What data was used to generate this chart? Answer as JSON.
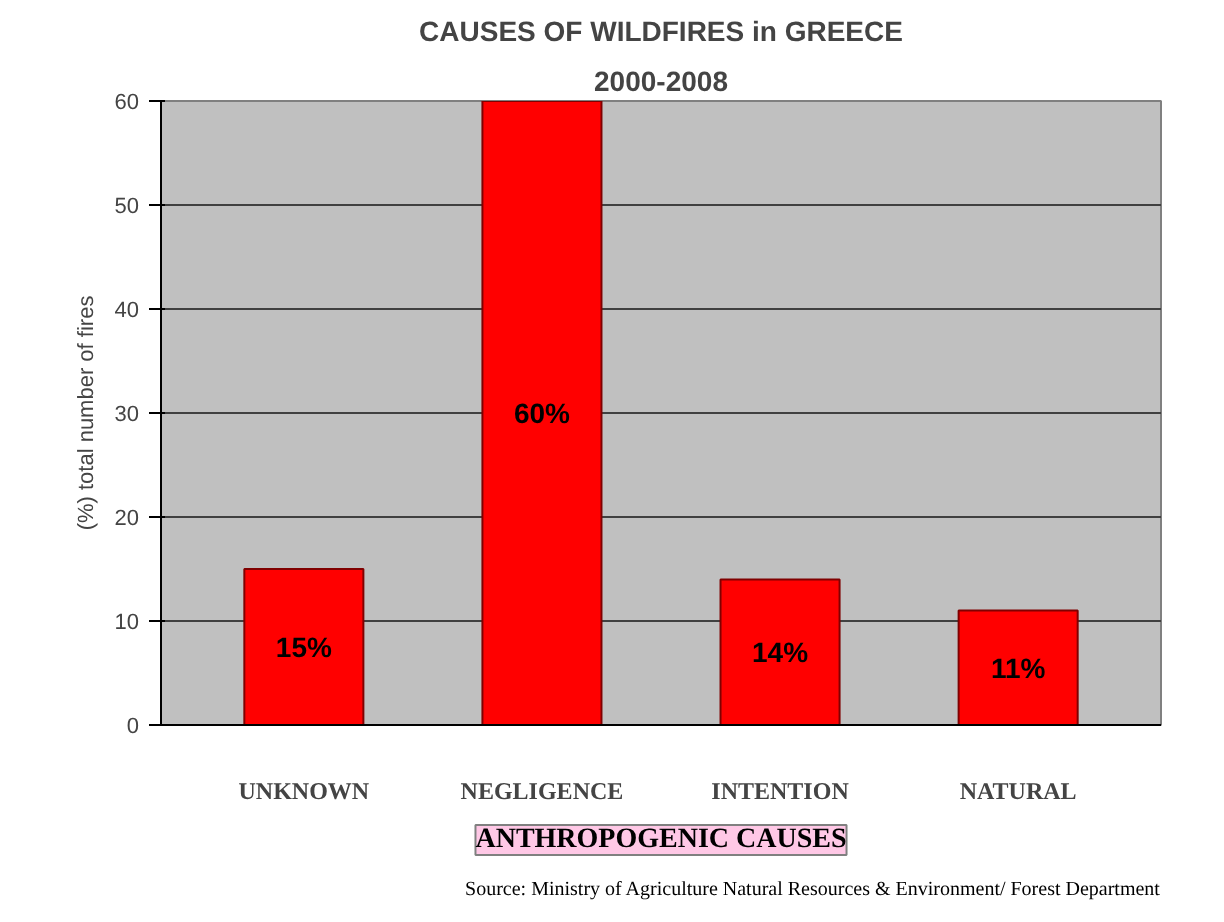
{
  "chart_data": {
    "type": "bar",
    "title": "CAUSES OF WILDFIRES in GREECE",
    "subtitle": "2000-2008",
    "ylabel": "(%) total number of fires",
    "categories": [
      "UNKNOWN",
      "NEGLIGENCE",
      "INTENTION",
      "NATURAL"
    ],
    "values": [
      15,
      60,
      14,
      11
    ],
    "color": "#ff0000",
    "value_labels": [
      "15%",
      "60%",
      "14%",
      "11%"
    ],
    "ylim": [
      0,
      60
    ],
    "yticks": [
      0,
      10,
      20,
      30,
      40,
      50,
      60
    ],
    "grid": "y",
    "annotations": [
      "ANTHROPOGENIC CAUSES",
      "Source: Ministry of Agriculture Natural Resources & Environment/ Forest Department"
    ]
  }
}
